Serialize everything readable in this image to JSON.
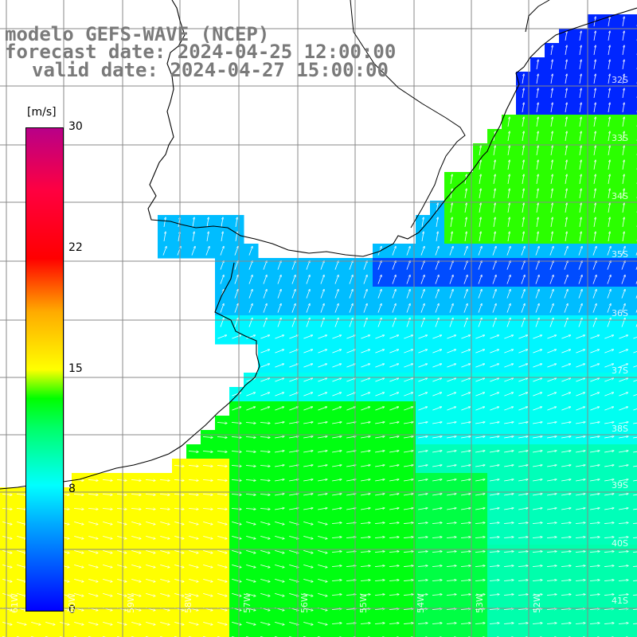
{
  "header": {
    "line1": "modelo GEFS-WAVE (NCEP)",
    "line2": "forecast date: 2024-04-25 12:00:00",
    "line3": "valid date: 2024-04-27 15:00:00"
  },
  "colorbar": {
    "unit": "[m/s]",
    "ticks": [
      "30",
      "22",
      "15",
      "8",
      "0"
    ],
    "tick_values": [
      30,
      22,
      15,
      8,
      0
    ],
    "colors": [
      "#0000ff",
      "#00ffff",
      "#00ff00",
      "#ffff00",
      "#ff7f00",
      "#ff0000",
      "#b80088"
    ]
  },
  "latitude_labels": [
    "32S",
    "33S",
    "34S",
    "35S",
    "36S",
    "37S",
    "38S",
    "39S",
    "40S",
    "41S"
  ],
  "longitude_labels": [
    "61W",
    "60W",
    "59W",
    "58W",
    "57W",
    "56W",
    "55W",
    "54W",
    "53W",
    "52W"
  ],
  "map": {
    "land_color": "#ffffff",
    "coast_color": "#000000",
    "grid_color": "#777777",
    "arrow_color": "#ffffff"
  }
}
